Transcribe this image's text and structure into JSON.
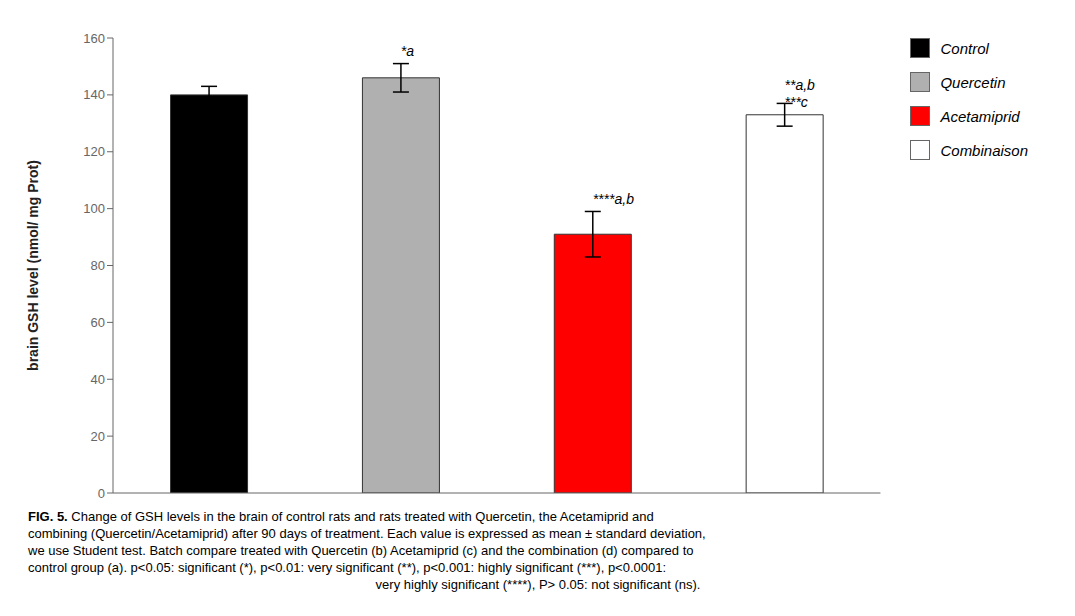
{
  "chart_data": {
    "type": "bar",
    "categories": [
      "Control",
      "Quercetin",
      "Acetamiprid",
      "Combinaison"
    ],
    "values": [
      140,
      146,
      91,
      133
    ],
    "errors": [
      3,
      5,
      8,
      4
    ],
    "colors": [
      "#000000",
      "#b0b0b0",
      "#ff0000",
      "#ffffff"
    ],
    "y_label": "brain GSH  level (nmol/ mg Prot)",
    "ylim": [
      0,
      160
    ],
    "yticks": [
      0,
      20,
      40,
      60,
      80,
      100,
      120,
      140,
      160
    ],
    "grid": false,
    "tick_labels": "y",
    "legend": "right",
    "annotations": [
      {
        "text": "*a",
        "x": "Quercetin",
        "y": 153
      },
      {
        "text": "****a,b",
        "x": "Acetamiprid",
        "y": 101
      },
      {
        "text": "**a,b",
        "x": "Combinaison",
        "y": 141
      },
      {
        "text": "***c",
        "x": "Combinaison",
        "y": 135
      }
    ],
    "caption": {
      "label": "FIG. 5.",
      "lines": [
        " Change of GSH levels in the brain of control rats and rats treated with Quercetin, the Acetamiprid and",
        "combining (Quercetin/Acetamiprid) after 90 days of treatment. Each value is expressed as mean ± standard deviation,",
        "we use Student test. Batch compare treated with Quercetin (b) Acetamiprid (c) and the combination (d) compared to",
        "control group (a). p<0.05: significant (*), p<0.01: very significant (**), p<0.001: highly significant (***), p<0.0001:",
        "very highly significant (****), P> 0.05: not significant (ns)."
      ]
    }
  }
}
